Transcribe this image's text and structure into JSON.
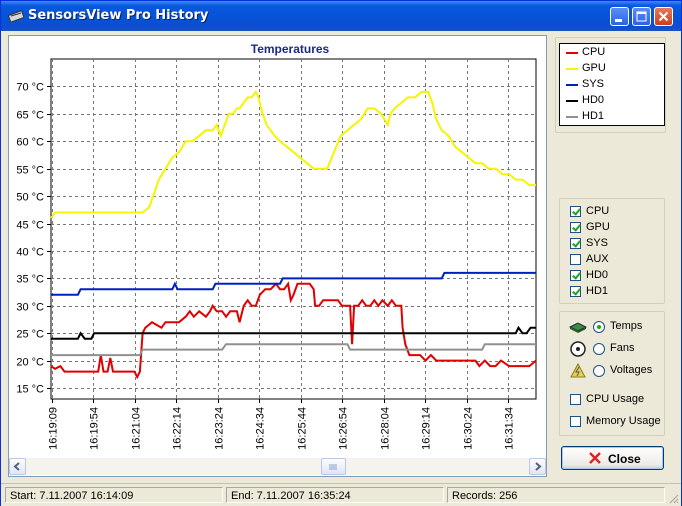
{
  "window": {
    "title": "SensorsView Pro History",
    "controls": {
      "minimize": "minimize",
      "maximize": "maximize",
      "close": "close"
    }
  },
  "chart_data": {
    "type": "line",
    "title": "Temperatures",
    "ylim": [
      13,
      75
    ],
    "y_ticks": [
      "15 °C",
      "20 °C",
      "25 °C",
      "30 °C",
      "35 °C",
      "40 °C",
      "45 °C",
      "50 °C",
      "55 °C",
      "60 °C",
      "65 °C",
      "70 °C"
    ],
    "y_tick_values": [
      15,
      20,
      25,
      30,
      35,
      40,
      45,
      50,
      55,
      60,
      65,
      70
    ],
    "x_ticks": [
      "16:19:09",
      "16:19:54",
      "16:21:04",
      "16:22:14",
      "16:23:24",
      "16:24:34",
      "16:25:44",
      "16:26:54",
      "16:28:04",
      "16:29:14",
      "16:30:24",
      "16:31:34"
    ],
    "grid": true,
    "series": [
      {
        "name": "CPU",
        "color": "#e00000",
        "values": [
          [
            0,
            19
          ],
          [
            0.3,
            18.5
          ],
          [
            0.7,
            19
          ],
          [
            1.0,
            18
          ],
          [
            3.5,
            18
          ],
          [
            3.7,
            21
          ],
          [
            3.9,
            18
          ],
          [
            4.2,
            18
          ],
          [
            4.4,
            20.5
          ],
          [
            4.6,
            18
          ],
          [
            5,
            18
          ],
          [
            6.2,
            18
          ],
          [
            6.4,
            17
          ],
          [
            6.6,
            18
          ],
          [
            6.8,
            25
          ],
          [
            7,
            26
          ],
          [
            7.5,
            27
          ],
          [
            8.2,
            26
          ],
          [
            8.5,
            27
          ],
          [
            9.5,
            27
          ],
          [
            10,
            28
          ],
          [
            10.3,
            29
          ],
          [
            10.6,
            28
          ],
          [
            11,
            29
          ],
          [
            11.5,
            28
          ],
          [
            11.8,
            29
          ],
          [
            12,
            30
          ],
          [
            12.3,
            29
          ],
          [
            12.7,
            29
          ],
          [
            13,
            28
          ],
          [
            13.3,
            29
          ],
          [
            13.8,
            29
          ],
          [
            14.0,
            27
          ],
          [
            14.3,
            30
          ],
          [
            14.6,
            31
          ],
          [
            14.9,
            30
          ],
          [
            15.2,
            30
          ],
          [
            15.5,
            32
          ],
          [
            15.9,
            33
          ],
          [
            16.3,
            33
          ],
          [
            16.7,
            34
          ],
          [
            17,
            33
          ],
          [
            17.3,
            33
          ],
          [
            17.6,
            34
          ],
          [
            17.8,
            31
          ],
          [
            18,
            32
          ],
          [
            18.3,
            34
          ],
          [
            18.5,
            34
          ],
          [
            18.8,
            34
          ],
          [
            19.2,
            34
          ],
          [
            19.5,
            33
          ],
          [
            19.6,
            30
          ],
          [
            19.9,
            30
          ],
          [
            20.2,
            31
          ],
          [
            20.5,
            31
          ],
          [
            21.0,
            31
          ],
          [
            21.3,
            31
          ],
          [
            21.6,
            30
          ],
          [
            22.0,
            30
          ],
          [
            22.2,
            30
          ],
          [
            22.35,
            23
          ],
          [
            22.5,
            30
          ],
          [
            22.8,
            30
          ],
          [
            23.1,
            31
          ],
          [
            23.4,
            30
          ],
          [
            23.7,
            30
          ],
          [
            24,
            31
          ],
          [
            24.3,
            30
          ],
          [
            24.6,
            31
          ],
          [
            25,
            30
          ],
          [
            25.3,
            31
          ],
          [
            25.6,
            30
          ],
          [
            26,
            30
          ],
          [
            26.1,
            26
          ],
          [
            26.3,
            23
          ],
          [
            26.6,
            21
          ],
          [
            27,
            21
          ],
          [
            27.4,
            21
          ],
          [
            27.8,
            20
          ],
          [
            28.2,
            21
          ],
          [
            28.6,
            20
          ],
          [
            30,
            20
          ],
          [
            31.5,
            20
          ],
          [
            31.8,
            19
          ],
          [
            32.2,
            20
          ],
          [
            32.6,
            19
          ],
          [
            33,
            19
          ],
          [
            33.4,
            20
          ],
          [
            34,
            19
          ],
          [
            34.5,
            19
          ],
          [
            35,
            19
          ],
          [
            35.5,
            19
          ],
          [
            36,
            20
          ]
        ]
      },
      {
        "name": "GPU",
        "color": "#f5f500",
        "values": [
          [
            0,
            46
          ],
          [
            0.3,
            47
          ],
          [
            1,
            47
          ],
          [
            4,
            47
          ],
          [
            6.8,
            47
          ],
          [
            7.3,
            48
          ],
          [
            8,
            53
          ],
          [
            8.5,
            55
          ],
          [
            9,
            57
          ],
          [
            9.5,
            58
          ],
          [
            10,
            60
          ],
          [
            10.5,
            60
          ],
          [
            11,
            61
          ],
          [
            11.5,
            62
          ],
          [
            12,
            62
          ],
          [
            12.3,
            63
          ],
          [
            12.6,
            61
          ],
          [
            12.9,
            63
          ],
          [
            13.2,
            65
          ],
          [
            13.5,
            65
          ],
          [
            13.8,
            66
          ],
          [
            14,
            66
          ],
          [
            14.3,
            67
          ],
          [
            14.6,
            68
          ],
          [
            14.9,
            68
          ],
          [
            15.2,
            69
          ],
          [
            15.4,
            68
          ],
          [
            15.7,
            65
          ],
          [
            16,
            63
          ],
          [
            16.3,
            62
          ],
          [
            16.6,
            61
          ],
          [
            17,
            60
          ],
          [
            17.5,
            59
          ],
          [
            18,
            58
          ],
          [
            18.5,
            57
          ],
          [
            19,
            56
          ],
          [
            19.5,
            55
          ],
          [
            20,
            55
          ],
          [
            20.5,
            55
          ],
          [
            21,
            58
          ],
          [
            21.5,
            61
          ],
          [
            22,
            62
          ],
          [
            22.5,
            63
          ],
          [
            23,
            64
          ],
          [
            23.5,
            66
          ],
          [
            24,
            66
          ],
          [
            24.5,
            65
          ],
          [
            25,
            63
          ],
          [
            25.2,
            65
          ],
          [
            25.5,
            66
          ],
          [
            26,
            67
          ],
          [
            26.5,
            68
          ],
          [
            27,
            68
          ],
          [
            27.5,
            69
          ],
          [
            28,
            69
          ],
          [
            28.3,
            67
          ],
          [
            28.6,
            64
          ],
          [
            29,
            62
          ],
          [
            29.5,
            61
          ],
          [
            30,
            59
          ],
          [
            30.5,
            58
          ],
          [
            31,
            57
          ],
          [
            31.5,
            56
          ],
          [
            32,
            56
          ],
          [
            32.5,
            55
          ],
          [
            33,
            55
          ],
          [
            33.5,
            54
          ],
          [
            34,
            54
          ],
          [
            34.5,
            53
          ],
          [
            35,
            53
          ],
          [
            35.5,
            52
          ],
          [
            36,
            52
          ]
        ]
      },
      {
        "name": "SYS",
        "color": "#0020c0",
        "values": [
          [
            0,
            32
          ],
          [
            1,
            32
          ],
          [
            2,
            32
          ],
          [
            2.2,
            33
          ],
          [
            3,
            33
          ],
          [
            6,
            33
          ],
          [
            6.5,
            33
          ],
          [
            7,
            33
          ],
          [
            8,
            33
          ],
          [
            9,
            33
          ],
          [
            9.2,
            34
          ],
          [
            9.4,
            33
          ],
          [
            10,
            33
          ],
          [
            11,
            33
          ],
          [
            12,
            33
          ],
          [
            12.2,
            34
          ],
          [
            14,
            34
          ],
          [
            16,
            34
          ],
          [
            17,
            34
          ],
          [
            17.2,
            35
          ],
          [
            20,
            35
          ],
          [
            24,
            35
          ],
          [
            27,
            35
          ],
          [
            29,
            35
          ],
          [
            29.2,
            36
          ],
          [
            32,
            36
          ],
          [
            36,
            36
          ]
        ]
      },
      {
        "name": "HD0",
        "color": "#000000",
        "values": [
          [
            0,
            24
          ],
          [
            1,
            24
          ],
          [
            2,
            24
          ],
          [
            2.2,
            25
          ],
          [
            2.5,
            24
          ],
          [
            3,
            24
          ],
          [
            3.2,
            25
          ],
          [
            3.5,
            25
          ],
          [
            6,
            25
          ],
          [
            10,
            25
          ],
          [
            16,
            25
          ],
          [
            20,
            25
          ],
          [
            24,
            25
          ],
          [
            28,
            25
          ],
          [
            33,
            25
          ],
          [
            34.5,
            25
          ],
          [
            34.7,
            26
          ],
          [
            35,
            25
          ],
          [
            35.3,
            25
          ],
          [
            35.6,
            26
          ],
          [
            36,
            26
          ]
        ]
      },
      {
        "name": "HD1",
        "color": "#909090",
        "values": [
          [
            0,
            21
          ],
          [
            3,
            21
          ],
          [
            6.6,
            21
          ],
          [
            6.8,
            22
          ],
          [
            9,
            22
          ],
          [
            9.2,
            22
          ],
          [
            12.5,
            22
          ],
          [
            12.7,
            22
          ],
          [
            13,
            23
          ],
          [
            22,
            23
          ],
          [
            22.2,
            22
          ],
          [
            24,
            22
          ],
          [
            25,
            22
          ],
          [
            26,
            22
          ],
          [
            30,
            22
          ],
          [
            31,
            22
          ],
          [
            32,
            22
          ],
          [
            32.2,
            23
          ],
          [
            36,
            23
          ]
        ]
      }
    ]
  },
  "legend": {
    "items": [
      {
        "label": "CPU",
        "color": "#e00000"
      },
      {
        "label": "GPU",
        "color": "#f5f500"
      },
      {
        "label": "SYS",
        "color": "#0020c0"
      },
      {
        "label": "HD0",
        "color": "#000000"
      },
      {
        "label": "HD1",
        "color": "#909090"
      }
    ]
  },
  "sensors": {
    "items": [
      {
        "label": "CPU",
        "checked": true
      },
      {
        "label": "GPU",
        "checked": true
      },
      {
        "label": "SYS",
        "checked": true
      },
      {
        "label": "AUX",
        "checked": false
      },
      {
        "label": "HD0",
        "checked": true
      },
      {
        "label": "HD1",
        "checked": true
      }
    ]
  },
  "view": {
    "options": [
      {
        "label": "Temps",
        "selected": true,
        "icon": "chip-icon"
      },
      {
        "label": "Fans",
        "selected": false,
        "icon": "fan-icon"
      },
      {
        "label": "Voltages",
        "selected": false,
        "icon": "lightning-icon"
      }
    ],
    "cpu_usage": "CPU Usage",
    "memory_usage": "Memory Usage"
  },
  "actions": {
    "close": "Close"
  },
  "status": {
    "start": "Start: 7.11.2007 16:14:09",
    "end": "End: 7.11.2007 16:35:24",
    "records": "Records: 256"
  }
}
